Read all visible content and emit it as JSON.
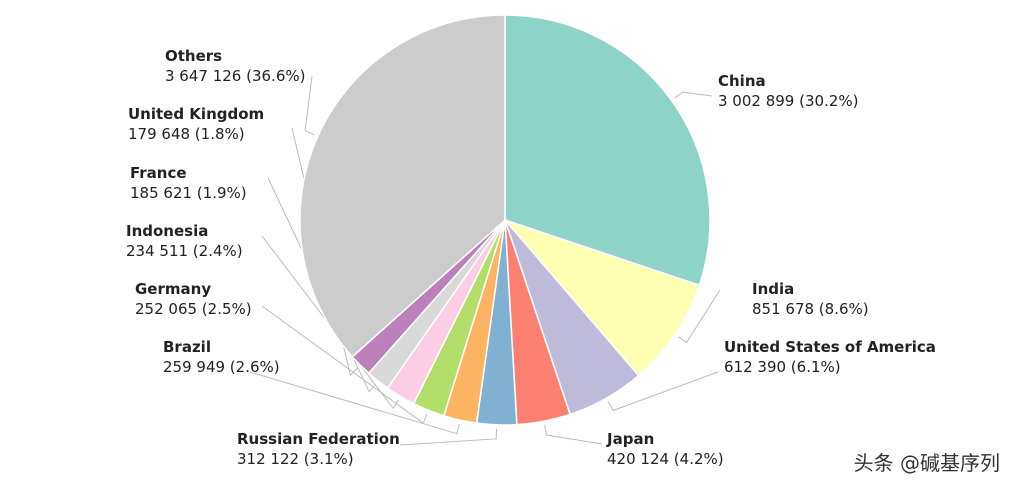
{
  "chart_data": {
    "type": "pie",
    "categories": [
      "China",
      "India",
      "United States of America",
      "Japan",
      "Russian Federation",
      "Brazil",
      "Germany",
      "Indonesia",
      "France",
      "United Kingdom",
      "Others"
    ],
    "values": [
      3002899,
      851678,
      612390,
      420124,
      312122,
      259949,
      252065,
      234511,
      185621,
      179648,
      3647126
    ],
    "value_labels": [
      "3 002 899 (30.2%)",
      "851 678 (8.6%)",
      "612 390 (6.1%)",
      "420 124 (4.2%)",
      "312 122 (3.1%)",
      "259 949 (2.6%)",
      "252 065 (2.5%)",
      "234 511 (2.4%)",
      "185 621 (1.9%)",
      "179 648 (1.8%)",
      "3 647 126 (36.6%)"
    ],
    "colors": [
      "#8dd3c7",
      "#ffffb3",
      "#bebada",
      "#fb8072",
      "#80b1d3",
      "#fdb462",
      "#b3de69",
      "#fccde5",
      "#d9d9d9",
      "#bc80bd",
      "#cccccc"
    ],
    "watermark": "头条 @碱基序列"
  }
}
